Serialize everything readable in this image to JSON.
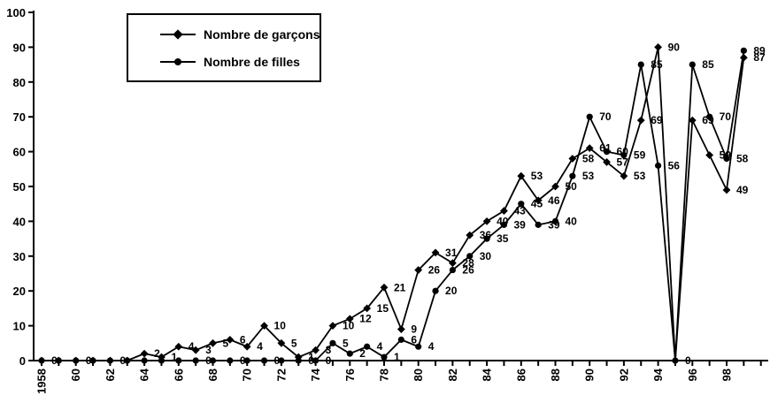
{
  "chart_data": {
    "type": "line",
    "title": "",
    "xlabel": "",
    "ylabel": "",
    "ylim": [
      0,
      100
    ],
    "yticks": [
      0,
      10,
      20,
      30,
      40,
      50,
      60,
      70,
      80,
      90,
      100
    ],
    "years": [
      1958,
      1959,
      1960,
      1961,
      1962,
      1963,
      1964,
      1965,
      1966,
      1967,
      1968,
      1969,
      1970,
      1971,
      1972,
      1973,
      1974,
      1975,
      1976,
      1977,
      1978,
      1979,
      1980,
      1981,
      1982,
      1983,
      1984,
      1985,
      1986,
      1987,
      1988,
      1989,
      1990,
      1991,
      1992,
      1993,
      1994,
      1995,
      1996,
      1997,
      1998,
      1999
    ],
    "x_tick_labels": [
      "1958",
      "60",
      "62",
      "64",
      "66",
      "68",
      "70",
      "72",
      "74",
      "76",
      "78",
      "80",
      "82",
      "84",
      "86",
      "88",
      "90",
      "92",
      "94",
      "96",
      "98"
    ],
    "grid": false,
    "legend_position": "top-left-inside",
    "series": [
      {
        "name": "Nombre de garçons",
        "marker": "diamond",
        "values": [
          0,
          0,
          0,
          0,
          0,
          0,
          2,
          1,
          4,
          3,
          5,
          6,
          4,
          10,
          5,
          1,
          3,
          10,
          12,
          15,
          21,
          9,
          26,
          31,
          28,
          36,
          40,
          43,
          53,
          46,
          50,
          58,
          61,
          57,
          53,
          69,
          90,
          0,
          69,
          59,
          49,
          87
        ],
        "point_labels": [
          "0",
          "",
          "0",
          "",
          "0",
          "",
          "2",
          "1",
          "4",
          "3",
          "5",
          "6",
          "4",
          "10",
          "5",
          "1",
          "3",
          "10",
          "12",
          "15",
          "21",
          "9",
          "26",
          "31",
          "28",
          "36",
          "40",
          "43",
          "53",
          "46",
          "50",
          "58",
          "61",
          "57",
          "53",
          "69",
          "90",
          "0",
          "69",
          "59",
          "49",
          "87"
        ]
      },
      {
        "name": "Nombre de filles",
        "marker": "circle",
        "values": [
          0,
          0,
          0,
          0,
          0,
          0,
          0,
          0,
          0,
          0,
          0,
          0,
          0,
          0,
          0,
          0,
          0,
          5,
          2,
          4,
          1,
          6,
          4,
          20,
          26,
          30,
          35,
          39,
          45,
          39,
          40,
          53,
          70,
          60,
          59,
          85,
          56,
          0,
          85,
          70,
          58,
          89
        ],
        "point_labels": [
          "",
          "",
          "",
          "",
          "",
          "",
          "",
          "",
          "",
          "0",
          "",
          "0",
          "",
          "0",
          "",
          "0",
          "0",
          "5",
          "2",
          "4",
          "1",
          "6",
          "4",
          "20",
          "26",
          "30",
          "35",
          "39",
          "45",
          "39",
          "40",
          "53",
          "70",
          "60",
          "59",
          "85",
          "56",
          "",
          "85",
          "70",
          "58",
          "89"
        ]
      }
    ]
  },
  "colors": {
    "series": "#000000",
    "axis": "#000000",
    "text": "#000000",
    "background": "#ffffff"
  }
}
